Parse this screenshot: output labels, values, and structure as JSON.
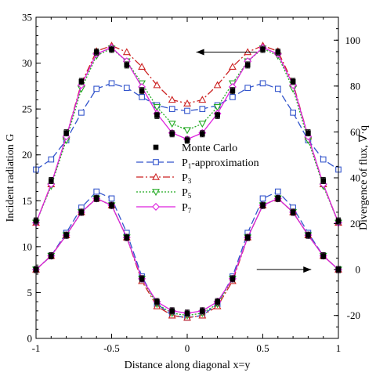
{
  "chart_data": {
    "type": "line",
    "xlabel": "Distance along diagonal x=y",
    "ylabel_left": "Incident radiation G",
    "ylabel_right": "Divergence of flux, ∇·q",
    "xlim": [
      -1,
      1
    ],
    "ylim_left": [
      0,
      35
    ],
    "ylim_right": [
      -30,
      110
    ],
    "xticks": [
      "-1",
      "-0.5",
      "0",
      "0.5",
      "1"
    ],
    "yticks_left": [
      "0",
      "5",
      "10",
      "15",
      "20",
      "25",
      "30",
      "35"
    ],
    "yticks_right": [
      "-20",
      "0",
      "20",
      "40",
      "60",
      "80",
      "100"
    ],
    "grid": false,
    "legend_position": "middle",
    "x": [
      -1.0,
      -0.9,
      -0.8,
      -0.7,
      -0.6,
      -0.5,
      -0.4,
      -0.3,
      -0.2,
      -0.1,
      0.0,
      0.1,
      0.2,
      0.3,
      0.4,
      0.5,
      0.6,
      0.7,
      0.8,
      0.9,
      1.0
    ],
    "series": [
      {
        "name": "Monte Carlo",
        "axis": "left",
        "color": "#000000",
        "marker": "filled-square",
        "errorbars": true,
        "values": [
          12.8,
          17.2,
          22.4,
          28.0,
          31.2,
          31.5,
          29.8,
          27.0,
          24.3,
          22.3,
          21.6,
          22.3,
          24.3,
          27.0,
          29.8,
          31.5,
          31.2,
          28.0,
          22.4,
          17.2,
          12.8
        ]
      },
      {
        "name": "P1-approximation",
        "axis": "left",
        "color": "#3355cc",
        "dash": "9,4",
        "marker": "open-square",
        "values": [
          18.4,
          19.5,
          21.6,
          24.6,
          27.2,
          27.8,
          27.3,
          26.3,
          25.4,
          25.0,
          24.8,
          25.0,
          25.4,
          26.3,
          27.3,
          27.8,
          27.2,
          24.6,
          21.6,
          19.5,
          18.4
        ]
      },
      {
        "name": "P3",
        "axis": "left",
        "color": "#cc2222",
        "dash": "9,3,2,3",
        "marker": "open-triangle",
        "values": [
          12.6,
          16.8,
          22.0,
          27.8,
          31.3,
          31.9,
          31.2,
          29.6,
          27.6,
          26.0,
          25.6,
          26.0,
          27.6,
          29.6,
          31.2,
          31.9,
          31.3,
          27.8,
          22.0,
          16.8,
          12.6
        ]
      },
      {
        "name": "P5",
        "axis": "left",
        "color": "#22aa22",
        "dash": "2,2",
        "marker": "open-triangle-down",
        "values": [
          12.6,
          16.6,
          21.6,
          27.2,
          30.8,
          31.6,
          30.2,
          27.8,
          25.2,
          23.4,
          22.7,
          23.4,
          25.2,
          27.8,
          30.2,
          31.6,
          30.8,
          27.2,
          21.6,
          16.6,
          12.6
        ]
      },
      {
        "name": "P7",
        "axis": "left",
        "color": "#dd22dd",
        "dash": "",
        "marker": "open-diamond",
        "values": [
          12.6,
          16.8,
          22.0,
          27.6,
          31.0,
          31.7,
          30.2,
          27.4,
          24.5,
          22.4,
          21.7,
          22.4,
          24.5,
          27.4,
          30.2,
          31.7,
          31.0,
          27.6,
          22.0,
          16.8,
          12.6
        ]
      },
      {
        "name": "Monte Carlo (∇·q)",
        "axis": "right",
        "color": "#000000",
        "marker": "filled-square",
        "errorbars": true,
        "in_legend": false,
        "values": [
          0,
          6,
          15,
          25,
          31,
          28,
          14,
          -4,
          -14,
          -18,
          -19,
          -18,
          -14,
          -4,
          14,
          28,
          31,
          25,
          15,
          6,
          0
        ]
      },
      {
        "name": "P1-approximation (∇·q)",
        "axis": "right",
        "color": "#3355cc",
        "dash": "9,4",
        "marker": "open-square",
        "in_legend": false,
        "values": [
          0,
          6,
          16,
          27,
          34,
          31,
          16,
          -3,
          -15,
          -20,
          -21,
          -20,
          -15,
          -3,
          16,
          31,
          34,
          27,
          16,
          6,
          0
        ]
      },
      {
        "name": "P3 (∇·q)",
        "axis": "right",
        "color": "#cc2222",
        "dash": "9,3,2,3",
        "marker": "open-triangle",
        "in_legend": false,
        "values": [
          0,
          6,
          15,
          25,
          31,
          28,
          14,
          -5,
          -16,
          -20,
          -21,
          -20,
          -16,
          -5,
          14,
          28,
          31,
          25,
          15,
          6,
          0
        ]
      },
      {
        "name": "P5 (∇·q)",
        "axis": "right",
        "color": "#22aa22",
        "dash": "2,2",
        "marker": "open-triangle-down",
        "in_legend": false,
        "values": [
          0,
          6,
          15,
          25,
          31,
          28,
          14,
          -4,
          -15,
          -19,
          -20,
          -19,
          -15,
          -4,
          14,
          28,
          31,
          25,
          15,
          6,
          0
        ]
      },
      {
        "name": "P7 (∇·q)",
        "axis": "right",
        "color": "#dd22dd",
        "dash": "",
        "marker": "open-diamond",
        "in_legend": false,
        "values": [
          0,
          6,
          15,
          25,
          31,
          28,
          14,
          -4,
          -14,
          -18,
          -19,
          -18,
          -14,
          -4,
          14,
          28,
          31,
          25,
          15,
          6,
          0
        ]
      }
    ],
    "annotations": [
      {
        "type": "arrow",
        "points_to": "left axis",
        "near_series": "upper curves"
      },
      {
        "type": "arrow",
        "points_to": "right axis",
        "near_series": "lower curves"
      }
    ]
  }
}
